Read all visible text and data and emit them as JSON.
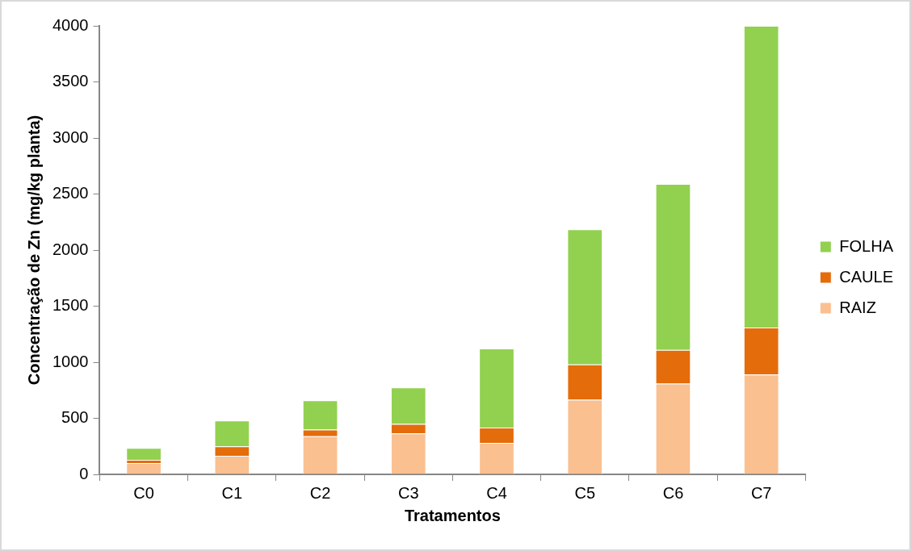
{
  "chart_data": {
    "type": "bar",
    "stacked": true,
    "xlabel": "Tratamentos",
    "ylabel": "Concentração de Zn (mg/kg planta)",
    "categories": [
      "C0",
      "C1",
      "C2",
      "C3",
      "C4",
      "C5",
      "C6",
      "C7"
    ],
    "series": [
      {
        "name": "RAIZ",
        "color": "#fac090",
        "values": [
          100,
          165,
          340,
          365,
          280,
          665,
          810,
          890
        ]
      },
      {
        "name": "CAULE",
        "color": "#e46c0a",
        "values": [
          30,
          85,
          60,
          85,
          137,
          315,
          300,
          420
        ]
      },
      {
        "name": "FOLHA",
        "color": "#92d050",
        "values": [
          105,
          230,
          260,
          325,
          706,
          1205,
          1480,
          2690
        ]
      }
    ],
    "ylim": [
      0,
      4000
    ],
    "yticks": [
      0,
      500,
      1000,
      1500,
      2000,
      2500,
      3000,
      3500,
      4000
    ],
    "legend": "right"
  }
}
